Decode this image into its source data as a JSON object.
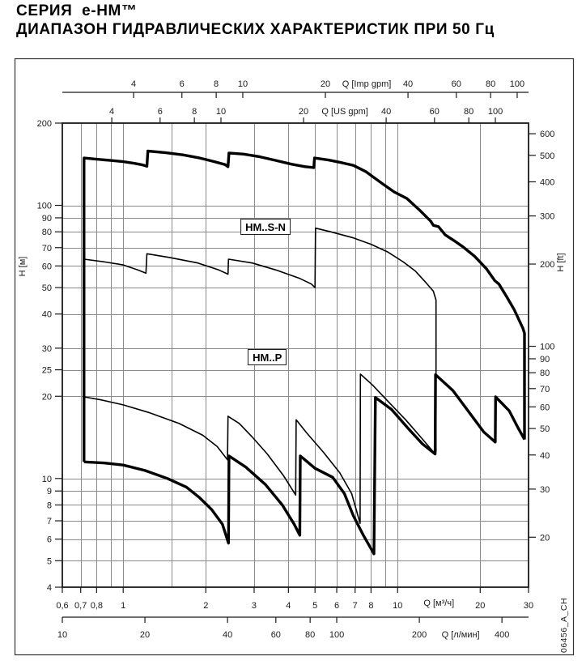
{
  "title": {
    "line1": "СЕРИЯ  e-HM™",
    "line2": "ДИАПАЗОН ГИДРАВЛИЧЕСКИХ ХАРАКТЕРИСТИК ПРИ 50 Гц"
  },
  "doc_code": "06456_A_CH",
  "chart_data": {
    "type": "line",
    "x_scale": "log",
    "y_scale": "log",
    "x_range_m3h": [
      0.6,
      30
    ],
    "y_range_m": [
      4,
      200
    ],
    "grid": {
      "x_lines_m3h": [
        0.7,
        0.8,
        0.9,
        1,
        1.5,
        2,
        3,
        4,
        5,
        6,
        7,
        8,
        9,
        10,
        20
      ],
      "y_lines_m": [
        5,
        6,
        7,
        8,
        9,
        10,
        20,
        25,
        30,
        40,
        50,
        60,
        70,
        80,
        90,
        100
      ]
    },
    "axes": {
      "top_imp": {
        "label": "Q [Imp gpm]",
        "unit_to_m3h": 0.27276,
        "ticks": [
          4,
          6,
          8,
          10,
          20,
          40,
          60,
          80,
          100
        ]
      },
      "top_us": {
        "label": "Q [US gpm]",
        "unit_to_m3h": 0.22712,
        "ticks": [
          4,
          6,
          8,
          10,
          20,
          40,
          60,
          80,
          100
        ]
      },
      "bottom_m3h": {
        "label": "Q [м³/ч]",
        "unit_to_m3h": 1,
        "ticks": [
          0.6,
          0.7,
          0.8,
          1,
          2,
          3,
          4,
          5,
          6,
          7,
          8,
          10,
          20,
          30
        ],
        "tick_labels": [
          "0,6",
          "0,7",
          "0,8",
          "1",
          "2",
          "3",
          "4",
          "5",
          "6",
          "7",
          "8",
          "10",
          "20",
          "30"
        ]
      },
      "bottom_lmin": {
        "label": "Q [л/мин]",
        "unit_to_m3h": 0.06,
        "ticks": [
          10,
          20,
          40,
          60,
          80,
          100,
          200,
          400
        ]
      },
      "left": {
        "label": "H [м]",
        "ticks": [
          4,
          5,
          6,
          7,
          8,
          9,
          10,
          20,
          25,
          30,
          40,
          50,
          60,
          70,
          80,
          90,
          100,
          200
        ]
      },
      "right": {
        "label": "H [ft]",
        "unit_to_m": 0.3048,
        "ticks": [
          20,
          30,
          40,
          50,
          60,
          70,
          80,
          90,
          100,
          200,
          300,
          400,
          500,
          600
        ]
      }
    },
    "series": [
      {
        "name": "combined-envelope-left-top-right",
        "stroke": "thick",
        "points": [
          [
            0.72,
            11.5
          ],
          [
            0.72,
            149
          ],
          [
            0.8,
            147.5
          ],
          [
            0.9,
            146
          ],
          [
            1.0,
            144.5
          ],
          [
            1.1,
            142.5
          ],
          [
            1.18,
            140.5
          ],
          [
            1.22,
            139
          ],
          [
            1.23,
            158
          ],
          [
            1.42,
            156
          ],
          [
            1.65,
            153
          ],
          [
            1.9,
            149
          ],
          [
            2.15,
            144.5
          ],
          [
            2.35,
            141
          ],
          [
            2.41,
            138.5
          ],
          [
            2.43,
            155.5
          ],
          [
            2.75,
            154
          ],
          [
            3.15,
            150.5
          ],
          [
            3.6,
            146
          ],
          [
            4.1,
            141.5
          ],
          [
            4.6,
            138.5
          ],
          [
            4.95,
            137.5
          ],
          [
            4.98,
            149
          ],
          [
            5.6,
            146.5
          ],
          [
            6.3,
            143
          ],
          [
            6.9,
            140
          ],
          [
            7.65,
            133
          ],
          [
            8.8,
            120
          ],
          [
            9.7,
            112
          ],
          [
            10.8,
            106
          ],
          [
            12.1,
            95.5
          ],
          [
            13.2,
            87.5
          ],
          [
            13.5,
            84.5
          ],
          [
            14.1,
            83.5
          ],
          [
            14.9,
            78
          ],
          [
            16.3,
            73.5
          ],
          [
            17.3,
            70.5
          ],
          [
            19.1,
            65
          ],
          [
            21.1,
            58.5
          ],
          [
            22.6,
            53
          ],
          [
            23.4,
            51.5
          ],
          [
            24.9,
            46.5
          ],
          [
            26.6,
            41.5
          ],
          [
            27.7,
            38
          ],
          [
            28.6,
            35.5
          ],
          [
            29.0,
            34
          ],
          [
            29.0,
            13.9
          ]
        ]
      },
      {
        "name": "combined-envelope-bottom",
        "stroke": "thick",
        "points": [
          [
            0.72,
            11.5
          ],
          [
            0.85,
            11.4
          ],
          [
            1.0,
            11.2
          ],
          [
            1.2,
            10.7
          ],
          [
            1.45,
            10.0
          ],
          [
            1.7,
            9.3
          ],
          [
            1.9,
            8.5
          ],
          [
            2.1,
            7.7
          ],
          [
            2.3,
            6.8
          ],
          [
            2.42,
            5.8
          ],
          [
            2.43,
            12.1
          ],
          [
            2.8,
            11.0
          ],
          [
            3.3,
            9.5
          ],
          [
            3.8,
            8.0
          ],
          [
            4.2,
            6.8
          ],
          [
            4.4,
            6.2
          ],
          [
            4.42,
            12.1
          ],
          [
            5.0,
            10.9
          ],
          [
            5.8,
            10.1
          ],
          [
            6.4,
            8.8
          ],
          [
            6.9,
            7.3
          ],
          [
            7.5,
            6.2
          ],
          [
            8.2,
            5.3
          ],
          [
            8.3,
            19.8
          ],
          [
            9.5,
            17.9
          ],
          [
            10.9,
            15.3
          ],
          [
            12.3,
            13.4
          ],
          [
            13.7,
            12.3
          ],
          [
            13.75,
            24.0
          ],
          [
            15.9,
            21.0
          ],
          [
            18.2,
            17.5
          ],
          [
            20.6,
            14.8
          ],
          [
            22.7,
            13.6
          ],
          [
            22.75,
            19.9
          ],
          [
            25.5,
            17.7
          ],
          [
            27.5,
            15.3
          ],
          [
            29.0,
            13.9
          ]
        ]
      },
      {
        "name": "hm-s-n-lower-boundary",
        "stroke": "thin",
        "points": [
          [
            0.72,
            63.5
          ],
          [
            0.86,
            62
          ],
          [
            1.0,
            60.5
          ],
          [
            1.13,
            58
          ],
          [
            1.21,
            56.5
          ],
          [
            1.22,
            66.5
          ],
          [
            1.47,
            64.5
          ],
          [
            1.87,
            61.5
          ],
          [
            2.23,
            58
          ],
          [
            2.41,
            56
          ],
          [
            2.42,
            63.5
          ],
          [
            2.95,
            61.5
          ],
          [
            3.6,
            58
          ],
          [
            4.4,
            54
          ],
          [
            4.85,
            51.5
          ],
          [
            5.0,
            50
          ],
          [
            5.02,
            82.5
          ],
          [
            5.7,
            80
          ],
          [
            6.9,
            76
          ],
          [
            8.0,
            72
          ],
          [
            9.2,
            67.5
          ],
          [
            10.5,
            62
          ],
          [
            11.6,
            57.5
          ],
          [
            12.6,
            52.5
          ],
          [
            13.5,
            48.5
          ],
          [
            13.8,
            45
          ],
          [
            13.8,
            12.5
          ]
        ]
      },
      {
        "name": "hm-p-upper-boundary",
        "stroke": "thin",
        "points": [
          [
            0.72,
            19.9
          ],
          [
            0.83,
            19.4
          ],
          [
            1.0,
            18.6
          ],
          [
            1.25,
            17.4
          ],
          [
            1.6,
            15.9
          ],
          [
            1.95,
            14.4
          ],
          [
            2.2,
            13.1
          ],
          [
            2.4,
            11.7
          ],
          [
            2.41,
            16.9
          ],
          [
            2.65,
            15.9
          ],
          [
            2.95,
            14.2
          ],
          [
            3.35,
            12.3
          ],
          [
            3.85,
            10.2
          ],
          [
            4.25,
            8.7
          ],
          [
            4.27,
            16.4
          ],
          [
            4.66,
            14.7
          ],
          [
            5.36,
            12.5
          ],
          [
            6.15,
            10.5
          ],
          [
            6.8,
            8.8
          ],
          [
            7.3,
            6.85
          ],
          [
            7.32,
            24.1
          ],
          [
            8.1,
            22
          ],
          [
            9.3,
            19
          ],
          [
            10.7,
            16.4
          ],
          [
            12.2,
            14.1
          ],
          [
            13.7,
            12.3
          ]
        ]
      }
    ],
    "annotations": [
      {
        "text": "HM..S-N",
        "q": 3.3,
        "h": 83.5
      },
      {
        "text": "HM..P",
        "q": 3.35,
        "h": 27.8
      }
    ],
    "colors": {
      "curve": "#000000",
      "grid": "#8a8a8a",
      "axis": "#1a1a1a",
      "text": "#1a1a1a",
      "frame": "#333333"
    }
  }
}
